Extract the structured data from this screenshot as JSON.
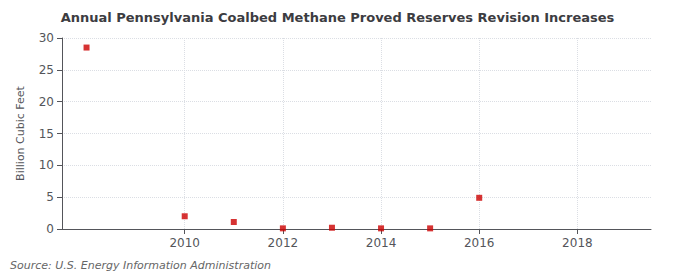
{
  "chart_data": {
    "type": "scatter",
    "title": "Annual Pennsylvania Coalbed Methane Proved Reserves Revision Increases",
    "ylabel": "Billion Cubic Feet",
    "annotations": [
      "Source: U.S. Energy Information Administration"
    ],
    "x": [
      2008,
      2010,
      2011,
      2012,
      2013,
      2014,
      2015,
      2016
    ],
    "values": [
      28.5,
      2.0,
      1.1,
      0.1,
      0.2,
      0.1,
      0.1,
      4.9
    ],
    "color": "#cc0000",
    "marker": "square",
    "xlim": [
      2007.5,
      2019.5
    ],
    "xticks": [
      2010,
      2012,
      2014,
      2016,
      2018
    ],
    "ylim": [
      0,
      30
    ],
    "yticks": [
      0,
      5,
      10,
      15,
      20,
      25,
      30
    ],
    "grid": true
  }
}
